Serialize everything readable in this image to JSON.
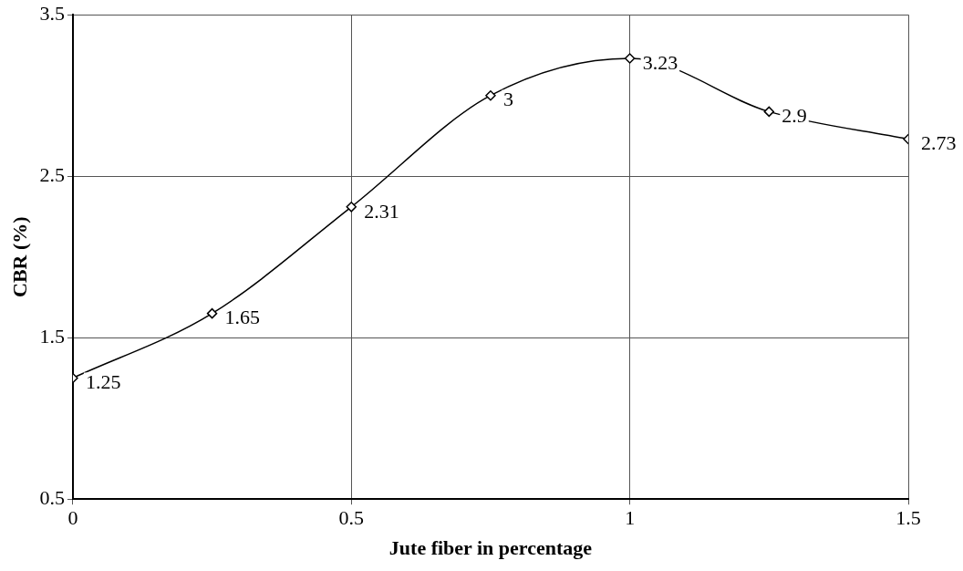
{
  "chart_data": {
    "type": "line",
    "xlabel": "Jute fiber in percentage",
    "ylabel": "CBR (%)",
    "x": [
      0,
      0.25,
      0.5,
      0.75,
      1,
      1.25,
      1.5
    ],
    "series": [
      {
        "color": "#000000",
        "values": [
          1.25,
          1.65,
          2.31,
          3,
          3.23,
          2.9,
          2.73
        ]
      }
    ],
    "xlim": [
      0,
      1.5
    ],
    "xticks": [
      0,
      0.5,
      1,
      1.5
    ],
    "ylim": [
      0.5,
      3.5
    ],
    "yticks": [
      0.5,
      1.5,
      2.5,
      3.5
    ],
    "grid": true,
    "legend": false,
    "marker": "diamond",
    "line_style": "solid",
    "data_labels": true
  }
}
